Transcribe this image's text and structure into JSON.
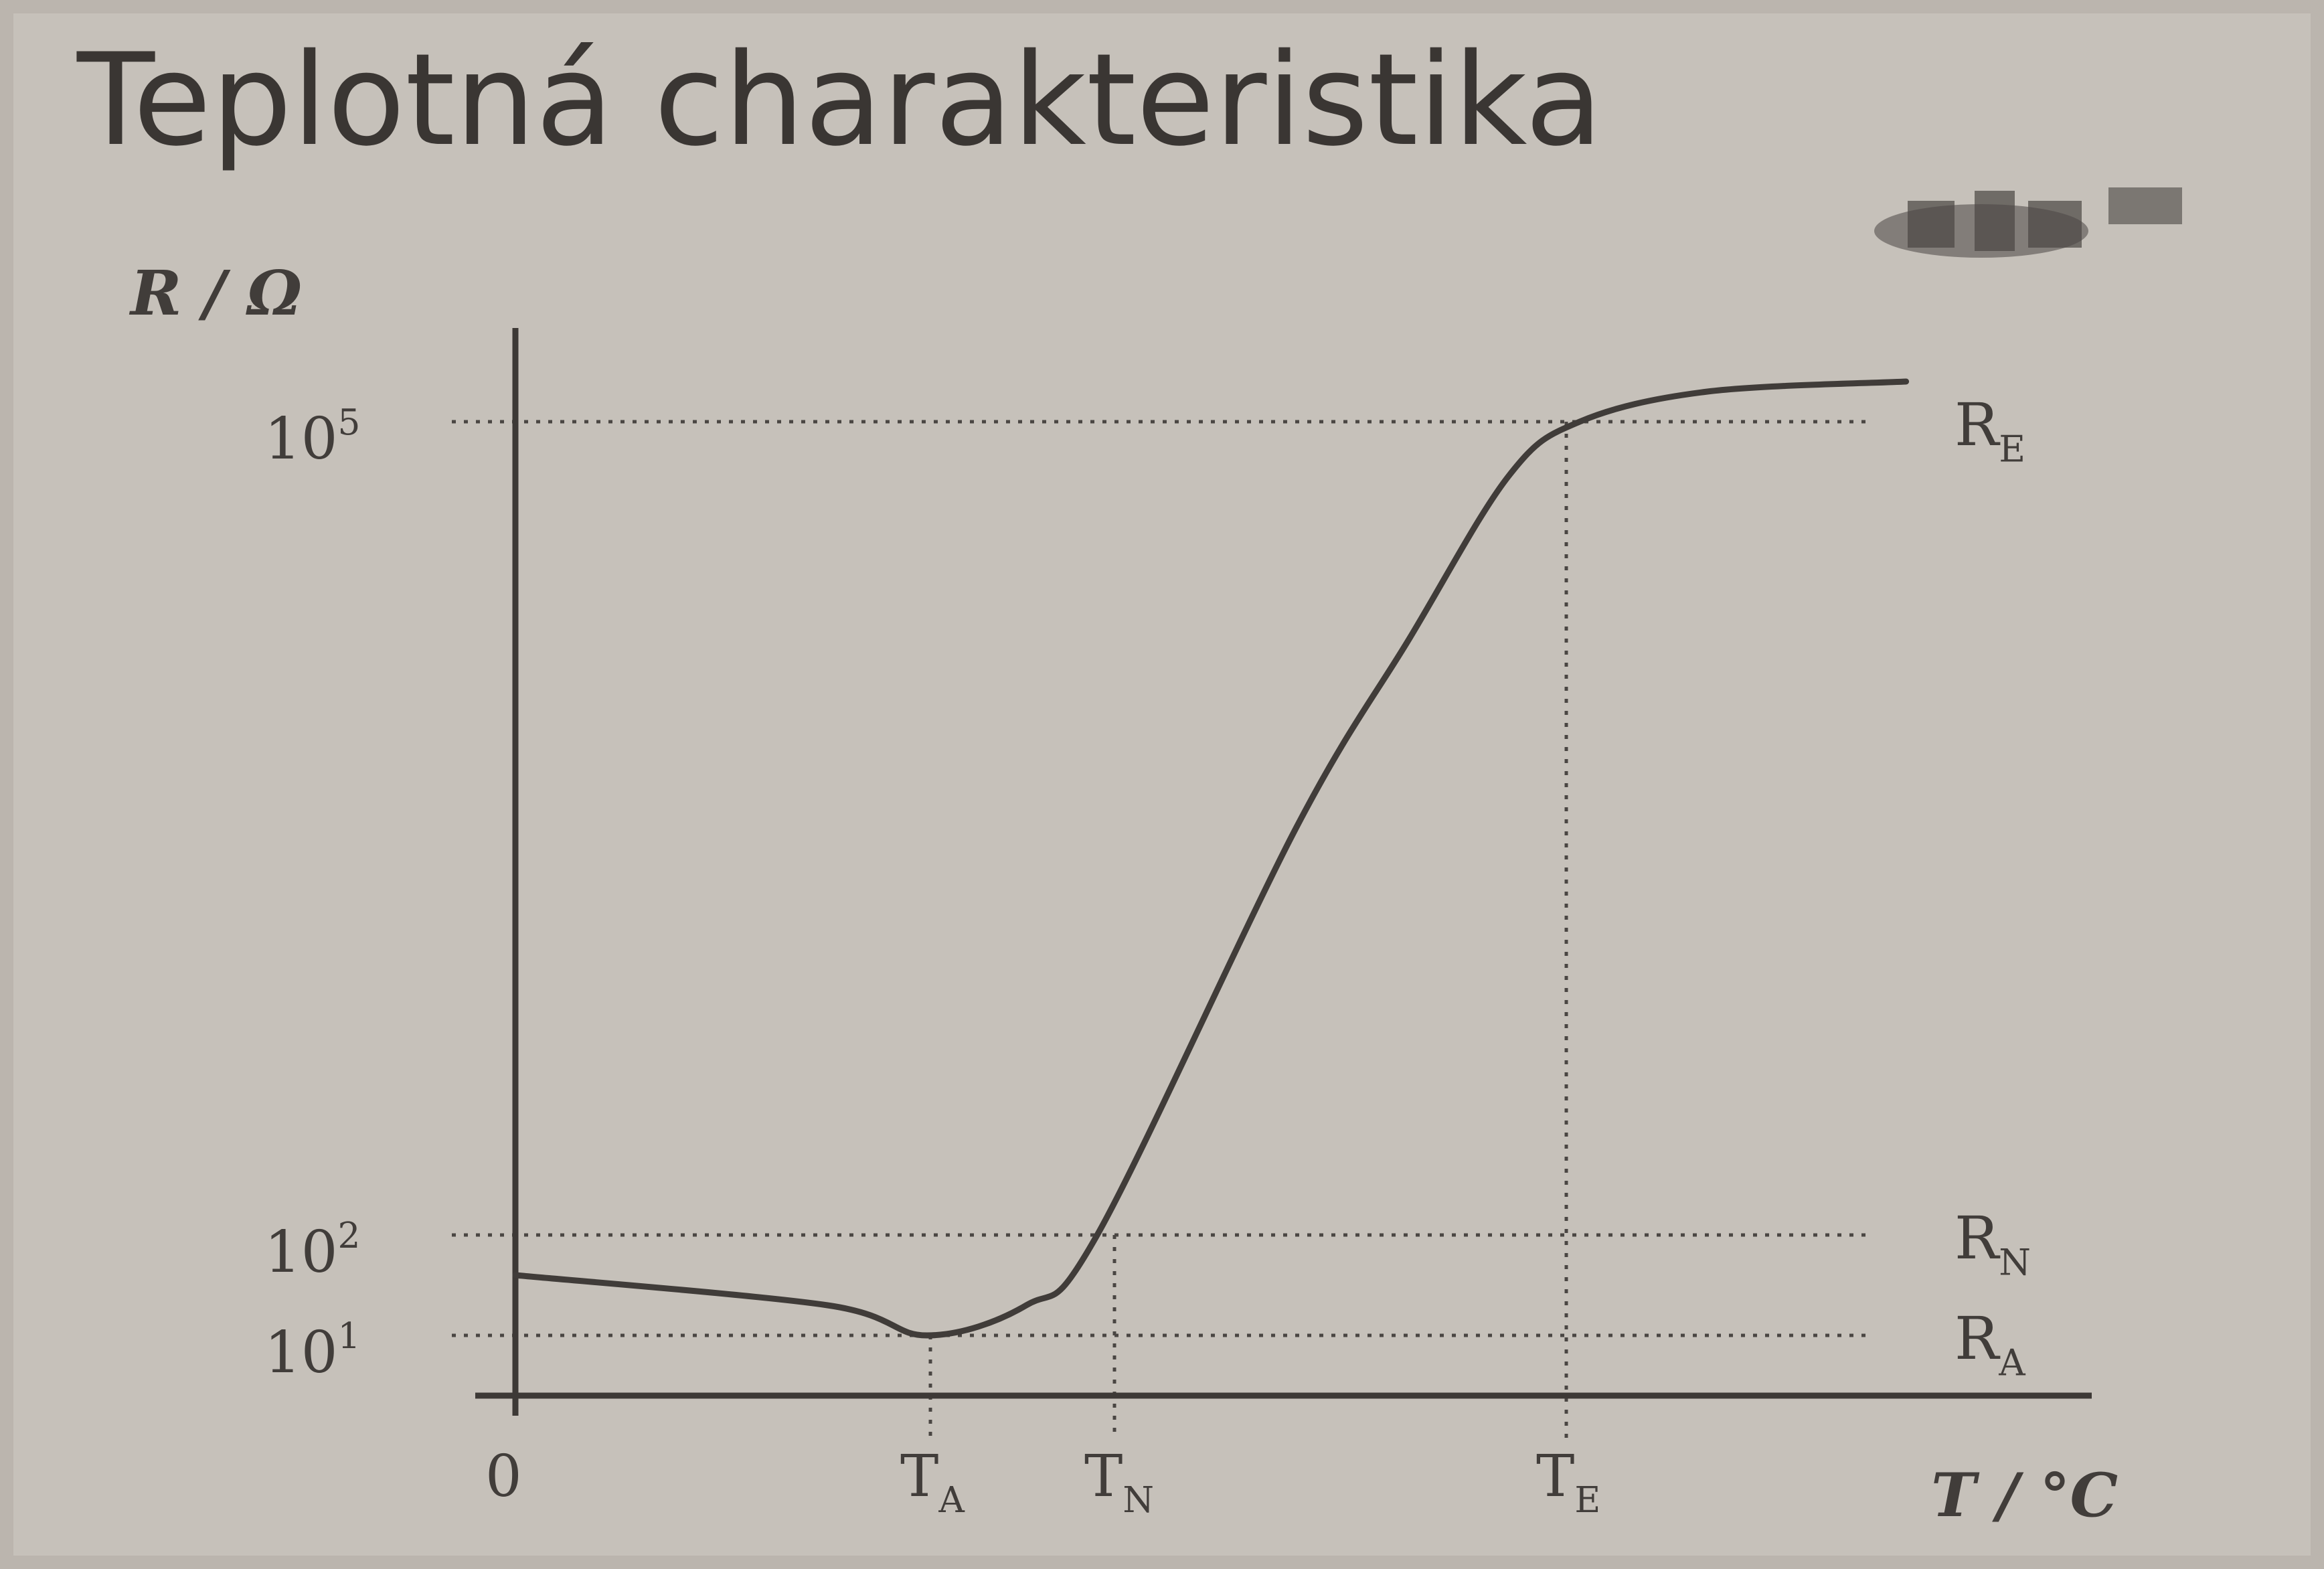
{
  "chart_data": {
    "type": "line",
    "title": "Teplotná charakteristika",
    "xlabel": "T / °C",
    "ylabel": "R / Ω",
    "yscale": "log",
    "x_ticks": [
      "0",
      "T_A",
      "T_N",
      "T_E"
    ],
    "y_ticks": [
      "10^1",
      "10^2",
      "10^5"
    ],
    "reference_lines": [
      {
        "label": "R_E",
        "y_exp": 5
      },
      {
        "label": "R_N",
        "y_exp": 2
      },
      {
        "label": "R_A",
        "y_exp": 1
      }
    ],
    "series": [
      {
        "points": [
          {
            "x": 0.0,
            "y_exp": 1.6
          },
          {
            "x": 0.22,
            "y_exp": 1.3
          },
          {
            "x": 0.29,
            "y_exp": 1.0
          },
          {
            "x": 0.36,
            "y_exp": 1.3
          },
          {
            "x": 0.41,
            "y_exp": 2.0
          },
          {
            "x": 0.55,
            "y_exp": 3.5
          },
          {
            "x": 0.63,
            "y_exp": 4.2
          },
          {
            "x": 0.7,
            "y_exp": 4.8
          },
          {
            "x": 0.75,
            "y_exp": 5.0
          },
          {
            "x": 0.84,
            "y_exp": 5.15
          },
          {
            "x": 0.98,
            "y_exp": 5.2
          }
        ]
      }
    ],
    "grid": false,
    "legend": "none"
  },
  "icons": {
    "corner_logo": "manufacturer-logo-icon"
  }
}
